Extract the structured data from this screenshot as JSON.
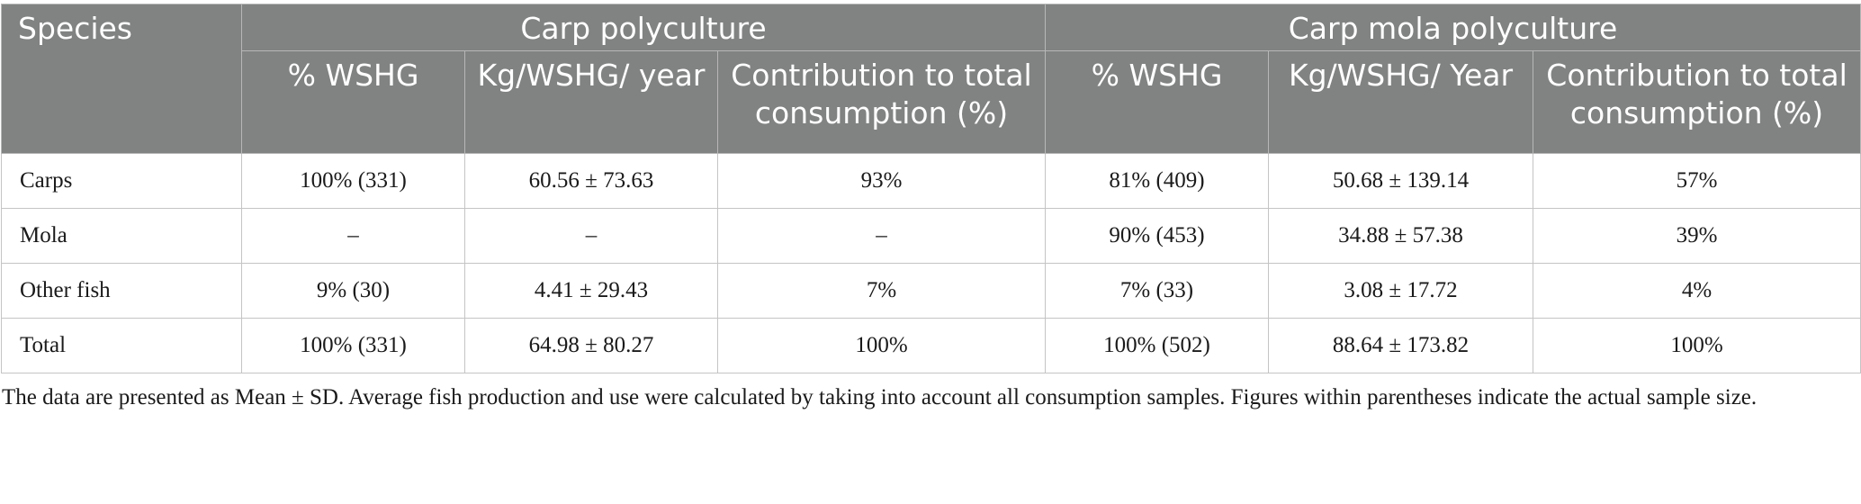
{
  "table": {
    "header": {
      "species": "Species",
      "groups": [
        "Carp polyculture",
        "Carp mola polyculture"
      ],
      "columns": [
        "% WSHG",
        "Kg/WSHG/ year",
        "Contribution to total consumption (%)",
        "% WSHG",
        "Kg/WSHG/ Year",
        "Contribution to total consumption (%)"
      ]
    },
    "rows": [
      {
        "species": "Carps",
        "cells": [
          "100% (331)",
          "60.56 ± 73.63",
          "93%",
          "81% (409)",
          "50.68 ± 139.14",
          "57%"
        ]
      },
      {
        "species": "Mola",
        "cells": [
          "–",
          "–",
          "–",
          "90% (453)",
          "34.88 ± 57.38",
          "39%"
        ]
      },
      {
        "species": "Other fish",
        "cells": [
          "9% (30)",
          "4.41 ± 29.43",
          "7%",
          "7% (33)",
          "3.08 ± 17.72",
          "4%"
        ]
      },
      {
        "species": "Total",
        "cells": [
          "100% (331)",
          "64.98 ± 80.27",
          "100%",
          "100% (502)",
          "88.64 ± 173.82",
          "100%"
        ]
      }
    ]
  },
  "footnote": "The data are presented as Mean ± SD. Average fish production and use were calculated by taking into account all consumption samples. Figures within parentheses indicate the actual sample size."
}
